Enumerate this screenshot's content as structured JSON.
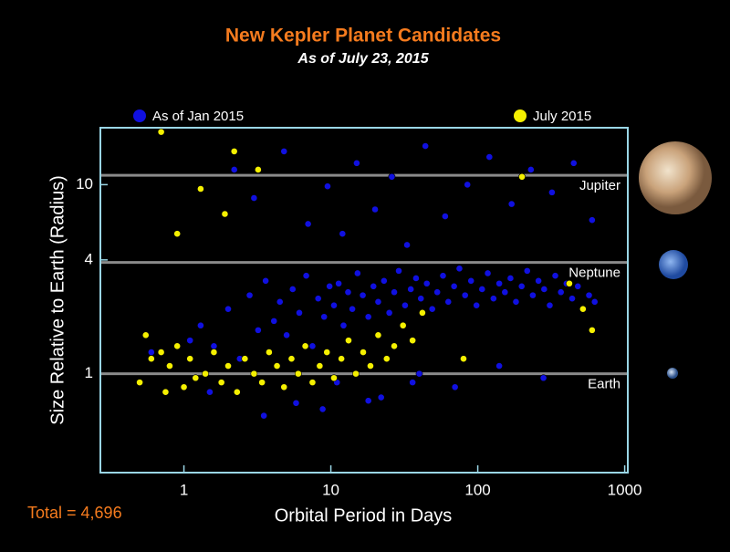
{
  "chart_data": {
    "type": "scatter",
    "title": "New Kepler Planet Candidates",
    "subtitle": "As of July 23, 2015",
    "xlabel": "Orbital Period in Days",
    "ylabel": "Size Relative to Earth (Radius)",
    "annotation": "Total = 4,696",
    "xscale": "log",
    "yscale": "log",
    "xlim": [
      0.27,
      1050
    ],
    "ylim": [
      0.3,
      20
    ],
    "xticks": [
      1,
      10,
      100,
      1000
    ],
    "yticks": [
      1,
      4,
      10
    ],
    "reference_lines": [
      {
        "value": 11.2,
        "label": "Jupiter"
      },
      {
        "value": 3.88,
        "label": "Neptune"
      },
      {
        "value": 1,
        "label": "Earth"
      }
    ],
    "series": [
      {
        "name": "As of Jan 2015",
        "color": "#1010e0",
        "x": [
          0.6,
          0.8,
          1.1,
          1.3,
          1.6,
          2.0,
          2.4,
          2.8,
          3.2,
          3.6,
          4.1,
          4.5,
          5.0,
          5.5,
          6.1,
          6.8,
          7.5,
          8.2,
          9.0,
          9.8,
          10.5,
          11.3,
          12.2,
          13.1,
          14.0,
          15.2,
          16.5,
          18,
          19.5,
          21,
          23,
          25,
          27,
          29,
          32,
          35,
          38,
          41,
          45,
          49,
          53,
          58,
          63,
          69,
          75,
          82,
          90,
          98,
          107,
          117,
          128,
          140,
          153,
          167,
          182,
          199,
          217,
          237,
          259,
          283,
          309,
          337,
          368,
          402,
          439,
          480,
          524,
          572,
          625,
          2.2,
          3.0,
          4.8,
          7.0,
          9.5,
          12,
          15,
          20,
          26,
          33,
          44,
          60,
          85,
          120,
          170,
          230,
          320,
          450,
          600,
          1.5,
          5.8,
          11,
          22,
          40,
          70,
          140,
          280,
          3.5,
          8.8,
          18,
          36
        ],
        "values": [
          1.3,
          1.1,
          1.5,
          1.8,
          1.4,
          2.2,
          1.2,
          2.6,
          1.7,
          3.1,
          1.9,
          2.4,
          1.6,
          2.8,
          2.1,
          3.3,
          1.4,
          2.5,
          2.0,
          2.9,
          2.3,
          3.0,
          1.8,
          2.7,
          2.2,
          3.4,
          2.6,
          2.0,
          2.9,
          2.4,
          3.1,
          2.1,
          2.7,
          3.5,
          2.3,
          2.8,
          3.2,
          2.5,
          3.0,
          2.2,
          2.7,
          3.3,
          2.4,
          2.9,
          3.6,
          2.6,
          3.1,
          2.3,
          2.8,
          3.4,
          2.5,
          3.0,
          2.7,
          3.2,
          2.4,
          2.9,
          3.5,
          2.6,
          3.1,
          2.8,
          2.3,
          3.3,
          2.7,
          3.0,
          2.5,
          2.9,
          2.2,
          2.6,
          2.4,
          12,
          8.5,
          15,
          6.2,
          9.8,
          5.5,
          13,
          7.4,
          11,
          4.8,
          16,
          6.8,
          10,
          14,
          7.9,
          12,
          9.1,
          13,
          6.5,
          0.8,
          0.7,
          0.9,
          0.75,
          1.0,
          0.85,
          1.1,
          0.95,
          0.6,
          0.65,
          0.72,
          0.9
        ]
      },
      {
        "name": "July 2015",
        "color": "#f5f000",
        "x": [
          0.5,
          0.55,
          0.6,
          0.7,
          0.75,
          0.8,
          0.9,
          1.0,
          1.1,
          1.2,
          1.4,
          1.6,
          1.8,
          2.0,
          2.3,
          2.6,
          3.0,
          3.4,
          3.8,
          4.3,
          4.8,
          5.4,
          6.0,
          6.7,
          7.5,
          8.4,
          9.4,
          10.5,
          11.8,
          13.2,
          14.8,
          16.6,
          18.6,
          21,
          24,
          27,
          31,
          36,
          42,
          0.7,
          1.3,
          2.2,
          3.2,
          0.9,
          1.9,
          80,
          200,
          420,
          520,
          600
        ],
        "values": [
          0.9,
          1.6,
          1.2,
          1.3,
          0.8,
          1.1,
          1.4,
          0.85,
          1.2,
          0.95,
          1.0,
          1.3,
          0.9,
          1.1,
          0.8,
          1.2,
          1.0,
          0.9,
          1.3,
          1.1,
          0.85,
          1.2,
          1.0,
          1.4,
          0.9,
          1.1,
          1.3,
          0.95,
          1.2,
          1.5,
          1.0,
          1.3,
          1.1,
          1.6,
          1.2,
          1.4,
          1.8,
          1.5,
          2.1,
          19,
          9.5,
          15,
          12,
          5.5,
          7.0,
          1.2,
          11,
          3.0,
          2.2,
          1.7
        ]
      }
    ]
  }
}
